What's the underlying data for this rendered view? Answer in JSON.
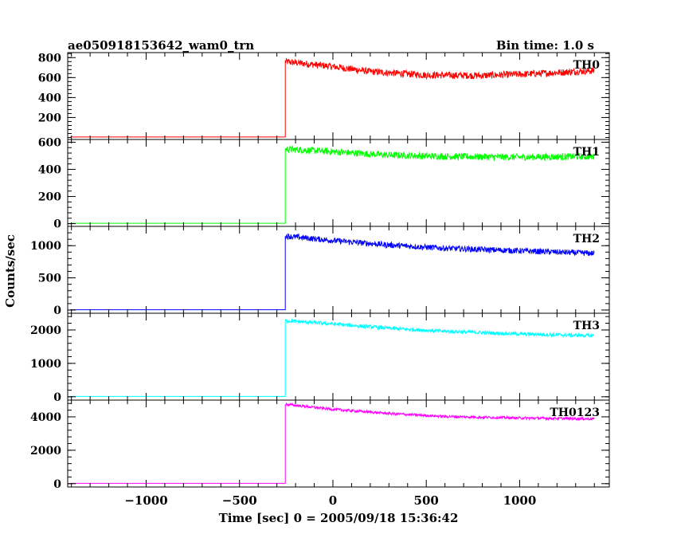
{
  "header": {
    "title": "ae050918153642_wam0_trn",
    "bin_time": "Bin time: 1.0 s"
  },
  "axes": {
    "xlabel": "Time [sec] 0 = 2005/09/18 15:36:42",
    "ylabel": "Counts/sec"
  },
  "chart_data": {
    "type": "line",
    "xlim": [
      -1420,
      1480
    ],
    "x_ticks": [
      -1000,
      -500,
      0,
      500,
      1000
    ],
    "x_tick_labels": [
      "−1000",
      "−500",
      "0",
      "500",
      "1000"
    ],
    "trigger_time": -255,
    "data_end": 1400,
    "panels": [
      {
        "name": "TH0",
        "color": "#ff0000",
        "ylim": [
          -20,
          850
        ],
        "y_ticks": [
          200,
          400,
          600,
          800
        ],
        "y_tick_labels": [
          "200",
          "400",
          "600",
          "800"
        ],
        "pre_level": 5,
        "curve": [
          [
            -255,
            760
          ],
          [
            0,
            710
          ],
          [
            200,
            660
          ],
          [
            500,
            625
          ],
          [
            800,
            620
          ],
          [
            1100,
            640
          ],
          [
            1400,
            670
          ]
        ],
        "noise": 35
      },
      {
        "name": "TH1",
        "color": "#00ff00",
        "ylim": [
          -20,
          620
        ],
        "y_ticks": [
          0,
          200,
          400,
          600
        ],
        "y_tick_labels": [
          "0",
          "200",
          "400",
          "600"
        ],
        "pre_level": 3,
        "curve": [
          [
            -255,
            550
          ],
          [
            0,
            530
          ],
          [
            300,
            505
          ],
          [
            600,
            495
          ],
          [
            1000,
            490
          ],
          [
            1400,
            495
          ]
        ],
        "noise": 25
      },
      {
        "name": "TH2",
        "color": "#0000ff",
        "ylim": [
          -50,
          1300
        ],
        "y_ticks": [
          0,
          500,
          1000
        ],
        "y_tick_labels": [
          "0",
          "500",
          "1000"
        ],
        "pre_level": 5,
        "curve": [
          [
            -255,
            1150
          ],
          [
            0,
            1080
          ],
          [
            300,
            1010
          ],
          [
            600,
            960
          ],
          [
            1000,
            920
          ],
          [
            1400,
            880
          ]
        ],
        "noise": 45
      },
      {
        "name": "TH3",
        "color": "#00ffff",
        "ylim": [
          -100,
          2500
        ],
        "y_ticks": [
          0,
          1000,
          2000
        ],
        "y_tick_labels": [
          "0",
          "1000",
          "2000"
        ],
        "pre_level": 10,
        "curve": [
          [
            -255,
            2280
          ],
          [
            0,
            2180
          ],
          [
            300,
            2050
          ],
          [
            600,
            1960
          ],
          [
            1000,
            1880
          ],
          [
            1400,
            1830
          ]
        ],
        "noise": 55
      },
      {
        "name": "TH0123",
        "color": "#ff00ff",
        "ylim": [
          -200,
          5000
        ],
        "y_ticks": [
          0,
          2000,
          4000
        ],
        "y_tick_labels": [
          "0",
          "2000",
          "4000"
        ],
        "pre_level": 20,
        "curve": [
          [
            -255,
            4750
          ],
          [
            0,
            4450
          ],
          [
            300,
            4200
          ],
          [
            600,
            4020
          ],
          [
            1000,
            3930
          ],
          [
            1400,
            3880
          ]
        ],
        "noise": 80
      }
    ]
  }
}
